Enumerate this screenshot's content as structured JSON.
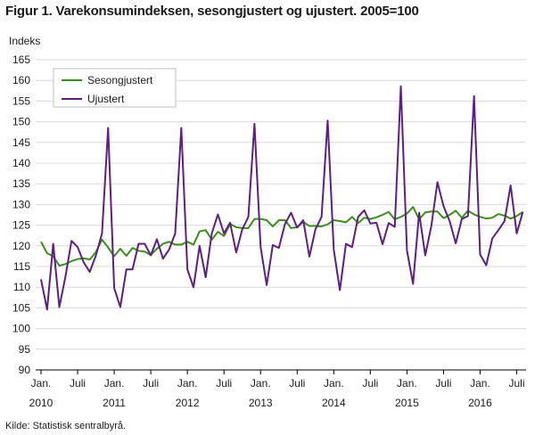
{
  "figure": {
    "title": "Figur 1. Varekonsumindeksen, sesongjustert og ujustert. 2005=100",
    "source": "Kilde: Statistisk sentralbyrå."
  },
  "chart_data": {
    "type": "line",
    "title": "Figur 1. Varekonsumindeksen, sesongjustert og ujustert. 2005=100",
    "ylabel": "Indeks",
    "xlabel": "",
    "ylim": [
      90,
      165
    ],
    "yticks": [
      90,
      95,
      100,
      105,
      110,
      115,
      120,
      125,
      130,
      135,
      140,
      145,
      150,
      155,
      160,
      165
    ],
    "x_start": "2010-01",
    "x_end": "2016-08",
    "x_tick_labels": [
      {
        "month": 0,
        "label": "Jan."
      },
      {
        "month": 6,
        "label": "Juli"
      },
      {
        "month": 12,
        "label": "Jan."
      },
      {
        "month": 18,
        "label": "Juli"
      },
      {
        "month": 24,
        "label": "Jan."
      },
      {
        "month": 30,
        "label": "Juli"
      },
      {
        "month": 36,
        "label": "Jan."
      },
      {
        "month": 42,
        "label": "Juli"
      },
      {
        "month": 48,
        "label": "Jan."
      },
      {
        "month": 54,
        "label": "Juli"
      },
      {
        "month": 60,
        "label": "Jan."
      },
      {
        "month": 66,
        "label": "Juli"
      },
      {
        "month": 72,
        "label": "Jan."
      },
      {
        "month": 78,
        "label": "Juli"
      }
    ],
    "x_year_labels": [
      {
        "month": 0,
        "label": "2010"
      },
      {
        "month": 12,
        "label": "2011"
      },
      {
        "month": 24,
        "label": "2012"
      },
      {
        "month": 36,
        "label": "2013"
      },
      {
        "month": 48,
        "label": "2014"
      },
      {
        "month": 60,
        "label": "2015"
      },
      {
        "month": 72,
        "label": "2016"
      }
    ],
    "grid": "horizontal",
    "legend_position": "top-left",
    "series": [
      {
        "name": "Sesongjustert",
        "color": "#3d8c1c",
        "values": [
          121.0,
          118.2,
          117.5,
          115.2,
          115.6,
          116.3,
          116.8,
          117.0,
          116.7,
          118.5,
          121.5,
          119.6,
          117.5,
          119.3,
          117.6,
          119.5,
          118.8,
          118.6,
          117.8,
          119.3,
          120.5,
          121.0,
          120.3,
          120.3,
          121.0,
          120.3,
          123.5,
          123.8,
          121.5,
          123.4,
          122.4,
          125.3,
          124.5,
          124.3,
          124.3,
          126.5,
          126.5,
          126.2,
          124.7,
          126.2,
          126.2,
          124.3,
          124.5,
          125.8,
          124.8,
          124.8,
          124.7,
          125.2,
          126.2,
          126.0,
          125.7,
          127.0,
          125.5,
          126.8,
          126.5,
          126.9,
          127.5,
          128.2,
          126.4,
          127.0,
          127.8,
          129.4,
          126.4,
          128.1,
          128.3,
          128.3,
          126.7,
          127.5,
          128.5,
          126.8,
          128.5,
          127.6,
          127.0,
          126.6,
          126.8,
          127.7,
          127.3,
          126.6,
          127.2,
          128.2
        ]
      },
      {
        "name": "Ujustert",
        "color": "#5c1f82",
        "values": [
          111.9,
          104.6,
          120.5,
          105.2,
          112.5,
          121.2,
          119.7,
          116.0,
          113.7,
          117.7,
          123.0,
          148.5,
          109.8,
          105.2,
          114.3,
          114.3,
          120.5,
          120.5,
          117.7,
          121.6,
          116.9,
          119.1,
          123.0,
          148.5,
          114.3,
          110.0,
          120.0,
          112.4,
          123.0,
          127.6,
          123.0,
          125.6,
          118.4,
          124.0,
          127.0,
          149.5,
          119.8,
          110.5,
          120.2,
          119.5,
          125.3,
          128.0,
          124.4,
          126.2,
          117.4,
          124.0,
          127.0,
          150.3,
          119.1,
          109.3,
          120.5,
          119.7,
          127.0,
          128.6,
          125.4,
          125.6,
          120.4,
          125.5,
          124.6,
          158.6,
          118.9,
          110.8,
          128.0,
          117.7,
          124.8,
          135.4,
          129.6,
          126.0,
          120.6,
          126.5,
          127.2,
          156.2,
          117.9,
          115.3,
          121.8,
          123.8,
          126.0,
          134.6,
          123.0,
          128.2
        ]
      }
    ]
  }
}
